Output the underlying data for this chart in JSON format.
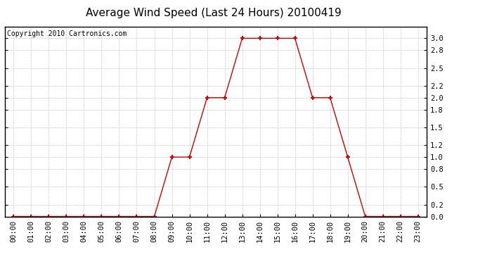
{
  "title": "Average Wind Speed (Last 24 Hours) 20100419",
  "copyright": "Copyright 2010 Cartronics.com",
  "hours": [
    "00:00",
    "01:00",
    "02:00",
    "03:00",
    "04:00",
    "05:00",
    "06:00",
    "07:00",
    "08:00",
    "09:00",
    "10:00",
    "11:00",
    "12:00",
    "13:00",
    "14:00",
    "15:00",
    "16:00",
    "17:00",
    "18:00",
    "19:00",
    "20:00",
    "21:00",
    "22:00",
    "23:00"
  ],
  "values": [
    0.0,
    0.0,
    0.0,
    0.0,
    0.0,
    0.0,
    0.0,
    0.0,
    0.0,
    1.0,
    1.0,
    2.0,
    2.0,
    3.0,
    3.0,
    3.0,
    3.0,
    2.0,
    2.0,
    1.0,
    0.0,
    0.0,
    0.0,
    0.0
  ],
  "line_color": "#cc0000",
  "marker": "+",
  "marker_size": 5,
  "marker_color": "#cc0000",
  "ylim": [
    0.0,
    3.2
  ],
  "yticks": [
    0.0,
    0.2,
    0.5,
    0.8,
    1.0,
    1.2,
    1.5,
    1.8,
    2.0,
    2.2,
    2.5,
    2.8,
    3.0
  ],
  "bg_color": "#ffffff",
  "grid_color": "#c8c8c8",
  "title_fontsize": 11,
  "copyright_fontsize": 7,
  "tick_fontsize": 7.5
}
